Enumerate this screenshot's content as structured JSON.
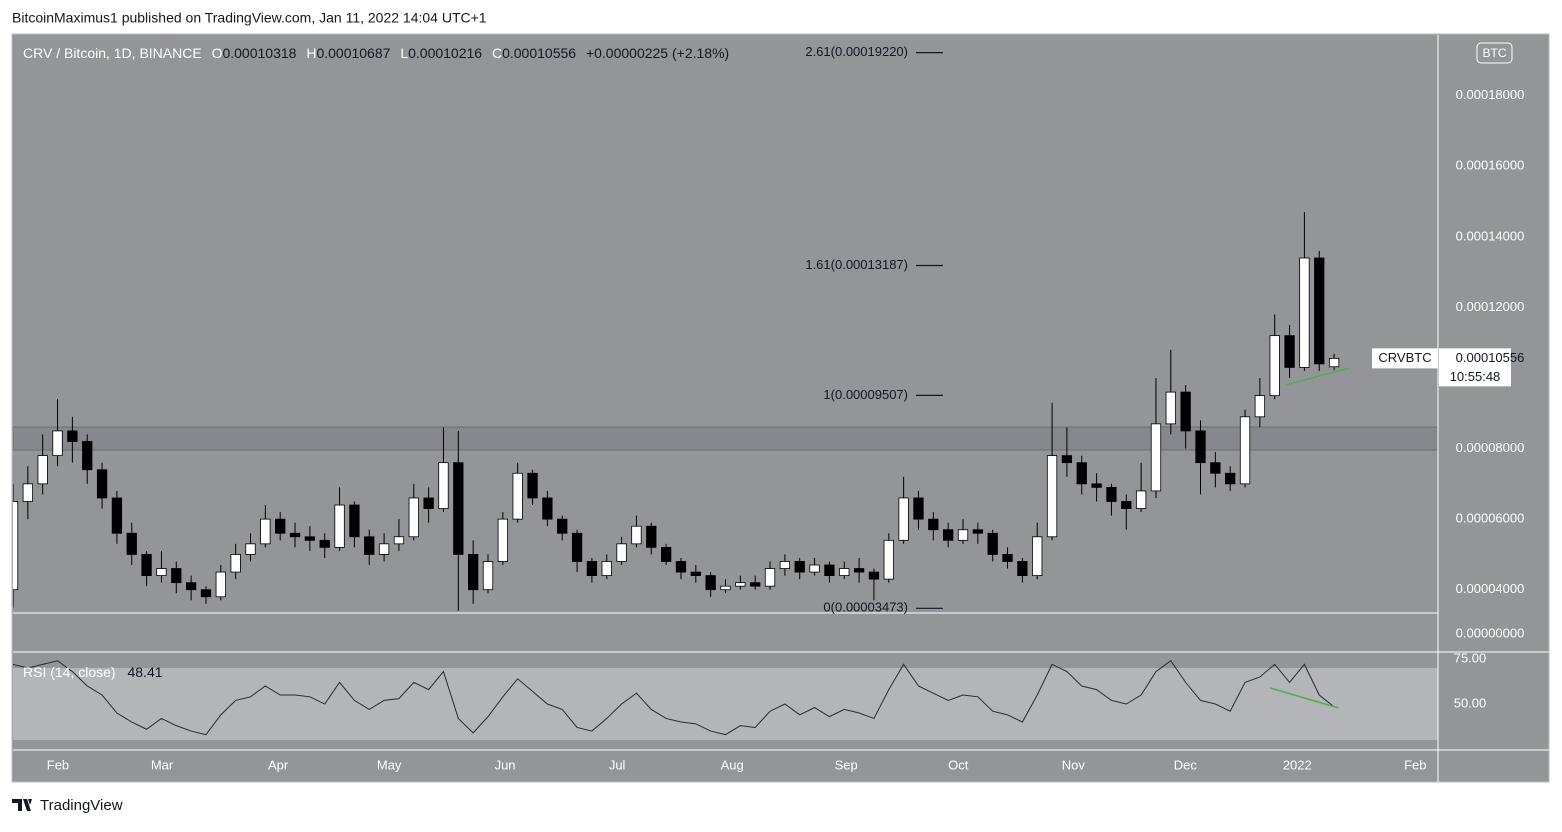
{
  "header": {
    "published": "BitcoinMaximus1 published on TradingView.com, Jan 11, 2022 14:04 UTC+1"
  },
  "footer": {
    "brand": "TradingView"
  },
  "chart_data": {
    "type": "candlestick",
    "symbol": "CRV / Bitcoin, 1D, BINANCE",
    "ohlc_legend": [
      {
        "key": "O",
        "text": "0.00010318"
      },
      {
        "key": "H",
        "text": "0.00010687"
      },
      {
        "key": "L",
        "text": "0.00010216"
      },
      {
        "key": "C",
        "text": "0.00010556"
      }
    ],
    "change": "+0.00000225 (+2.18%)",
    "currency": "BTC",
    "up_color": "#ffffff",
    "down_color": "#000000",
    "open": [
      4e-05,
      6.5e-05,
      7e-05,
      7.8e-05,
      8.5e-05,
      8.2e-05,
      7.4e-05,
      6.6e-05,
      5.6e-05,
      5e-05,
      4.4e-05,
      4.6e-05,
      4.2e-05,
      4e-05,
      3.8e-05,
      4.5e-05,
      5e-05,
      5.3e-05,
      6e-05,
      5.6e-05,
      5.5e-05,
      5.4e-05,
      5.2e-05,
      6.4e-05,
      5.5e-05,
      5e-05,
      5.3e-05,
      5.5e-05,
      6.6e-05,
      6.3e-05,
      7.6e-05,
      5e-05,
      4e-05,
      4.8e-05,
      6e-05,
      7.3e-05,
      6.6e-05,
      6e-05,
      5.6e-05,
      4.8e-05,
      4.4e-05,
      4.8e-05,
      5.3e-05,
      5.8e-05,
      5.2e-05,
      4.8e-05,
      4.5e-05,
      4.4e-05,
      4e-05,
      4.1e-05,
      4.2e-05,
      4.1e-05,
      4.6e-05,
      4.8e-05,
      4.5e-05,
      4.7e-05,
      4.4e-05,
      4.6e-05,
      4.5e-05,
      4.3e-05,
      5.4e-05,
      6.6e-05,
      6e-05,
      5.7e-05,
      5.4e-05,
      5.7e-05,
      5.6e-05,
      5e-05,
      4.8e-05,
      4.4e-05,
      5.5e-05,
      7.8e-05,
      7.6e-05,
      7e-05,
      6.9e-05,
      6.5e-05,
      6.3e-05,
      6.8e-05,
      8.7e-05,
      9.6e-05,
      8.5e-05,
      7.6e-05,
      7.3e-05,
      7e-05,
      8.9e-05,
      9.5e-05,
      0.000112,
      0.000103,
      0.000134,
      0.00010318
    ],
    "high": [
      7e-05,
      7.5e-05,
      8.4e-05,
      9.4e-05,
      8.9e-05,
      8.4e-05,
      7.6e-05,
      6.8e-05,
      5.9e-05,
      5.1e-05,
      5.1e-05,
      4.8e-05,
      4.4e-05,
      4.1e-05,
      4.7e-05,
      5.3e-05,
      5.6e-05,
      6.4e-05,
      6.2e-05,
      5.9e-05,
      5.8e-05,
      5.6e-05,
      6.9e-05,
      6.5e-05,
      5.7e-05,
      5.6e-05,
      6e-05,
      7e-05,
      6.9e-05,
      8.6e-05,
      8.5e-05,
      5.4e-05,
      5e-05,
      6.2e-05,
      7.6e-05,
      7.4e-05,
      6.8e-05,
      6.1e-05,
      5.7e-05,
      4.9e-05,
      5e-05,
      5.5e-05,
      6.1e-05,
      5.9e-05,
      5.3e-05,
      4.9e-05,
      4.7e-05,
      4.5e-05,
      4.3e-05,
      4.4e-05,
      4.4e-05,
      4.8e-05,
      5e-05,
      4.9e-05,
      4.9e-05,
      4.8e-05,
      4.8e-05,
      4.9e-05,
      4.6e-05,
      5.6e-05,
      7.2e-05,
      6.8e-05,
      6.2e-05,
      5.9e-05,
      6e-05,
      5.9e-05,
      5.7e-05,
      5.2e-05,
      4.9e-05,
      5.9e-05,
      9.3e-05,
      8.6e-05,
      7.8e-05,
      7.3e-05,
      7e-05,
      6.7e-05,
      7.6e-05,
      0.0001,
      0.000108,
      9.8e-05,
      8.8e-05,
      7.9e-05,
      7.5e-05,
      9.1e-05,
      0.0001,
      0.000118,
      0.000115,
      0.000147,
      0.000136,
      0.00010687
    ],
    "low": [
      3.5e-05,
      6e-05,
      6.7e-05,
      7.5e-05,
      7.6e-05,
      7e-05,
      6.3e-05,
      5.3e-05,
      4.7e-05,
      4.1e-05,
      4.2e-05,
      3.9e-05,
      3.7e-05,
      3.6e-05,
      3.7e-05,
      4.3e-05,
      4.8e-05,
      5.2e-05,
      5.4e-05,
      5.2e-05,
      5.1e-05,
      4.9e-05,
      5.1e-05,
      5.2e-05,
      4.7e-05,
      4.8e-05,
      5.1e-05,
      5.4e-05,
      5.9e-05,
      6.2e-05,
      3.4e-05,
      3.6e-05,
      3.9e-05,
      4.7e-05,
      5.9e-05,
      6.4e-05,
      5.8e-05,
      5.4e-05,
      4.5e-05,
      4.2e-05,
      4.3e-05,
      4.7e-05,
      5.2e-05,
      5e-05,
      4.7e-05,
      4.3e-05,
      4.2e-05,
      3.8e-05,
      3.9e-05,
      4e-05,
      4e-05,
      4e-05,
      4.4e-05,
      4.3e-05,
      4.4e-05,
      4.2e-05,
      4.3e-05,
      4.2e-05,
      3.7e-05,
      4.2e-05,
      5.3e-05,
      5.7e-05,
      5.4e-05,
      5.2e-05,
      5.3e-05,
      5.3e-05,
      4.8e-05,
      4.6e-05,
      4.2e-05,
      4.3e-05,
      5.4e-05,
      7.2e-05,
      6.7e-05,
      6.5e-05,
      6.1e-05,
      5.7e-05,
      6.2e-05,
      6.6e-05,
      8.4e-05,
      8e-05,
      6.7e-05,
      6.9e-05,
      6.8e-05,
      6.9e-05,
      8.6e-05,
      9.4e-05,
      0.0001,
      0.000102,
      0.000102,
      0.00010216
    ],
    "close": [
      6.5e-05,
      7e-05,
      7.8e-05,
      8.5e-05,
      8.2e-05,
      7.4e-05,
      6.6e-05,
      5.6e-05,
      5e-05,
      4.4e-05,
      4.6e-05,
      4.2e-05,
      4e-05,
      3.8e-05,
      4.5e-05,
      5e-05,
      5.3e-05,
      6e-05,
      5.6e-05,
      5.5e-05,
      5.4e-05,
      5.2e-05,
      6.4e-05,
      5.5e-05,
      5e-05,
      5.3e-05,
      5.5e-05,
      6.6e-05,
      6.3e-05,
      7.6e-05,
      5e-05,
      4e-05,
      4.8e-05,
      6e-05,
      7.3e-05,
      6.6e-05,
      6e-05,
      5.6e-05,
      4.8e-05,
      4.4e-05,
      4.8e-05,
      5.3e-05,
      5.8e-05,
      5.2e-05,
      4.8e-05,
      4.5e-05,
      4.4e-05,
      4e-05,
      4.1e-05,
      4.2e-05,
      4.1e-05,
      4.6e-05,
      4.8e-05,
      4.5e-05,
      4.7e-05,
      4.4e-05,
      4.6e-05,
      4.5e-05,
      4.3e-05,
      5.4e-05,
      6.6e-05,
      6e-05,
      5.7e-05,
      5.4e-05,
      5.7e-05,
      5.6e-05,
      5e-05,
      4.8e-05,
      4.4e-05,
      5.5e-05,
      7.8e-05,
      7.6e-05,
      7e-05,
      6.9e-05,
      6.5e-05,
      6.3e-05,
      6.8e-05,
      8.7e-05,
      9.6e-05,
      8.5e-05,
      7.6e-05,
      7.3e-05,
      7e-05,
      8.9e-05,
      9.5e-05,
      0.000112,
      0.000103,
      0.000134,
      0.000104,
      0.00010556
    ],
    "xlim": [
      0,
      96
    ],
    "xticks": [
      {
        "value": 3.03,
        "label": "Feb"
      },
      {
        "value": 10.04,
        "label": "Mar"
      },
      {
        "value": 17.86,
        "label": "Apr"
      },
      {
        "value": 25.34,
        "label": "May"
      },
      {
        "value": 33.15,
        "label": "Jun"
      },
      {
        "value": 40.7,
        "label": "Jul"
      },
      {
        "value": 48.45,
        "label": "Aug"
      },
      {
        "value": 56.13,
        "label": "Sep"
      },
      {
        "value": 63.68,
        "label": "Oct"
      },
      {
        "value": 71.43,
        "label": "Nov"
      },
      {
        "value": 78.98,
        "label": "Dec"
      },
      {
        "value": 86.52,
        "label": "2022"
      },
      {
        "value": 94.47,
        "label": "Feb"
      }
    ],
    "ylim": [
      3.34e-05,
      0.0001972
    ],
    "yticks": [
      {
        "value": 4e-05,
        "label": "0.00004000"
      },
      {
        "value": 6e-05,
        "label": "0.00006000"
      },
      {
        "value": 8e-05,
        "label": "0.00008000"
      },
      {
        "value": 0.00012,
        "label": "0.00012000"
      },
      {
        "value": 0.00014,
        "label": "0.00014000"
      },
      {
        "value": 0.00016,
        "label": "0.00016000"
      },
      {
        "value": 0.00018,
        "label": "0.00018000"
      }
    ],
    "scale_floor_label": "0.00000000",
    "zone": [
      7.96e-05,
      8.61e-05
    ],
    "fib_levels": [
      {
        "value": 0.0001922,
        "label": "2.61(0.00019220)"
      },
      {
        "value": 0.00013187,
        "label": "1.61(0.00013187)"
      },
      {
        "value": 9.507e-05,
        "label": "1(0.00009507)"
      },
      {
        "value": 3.473e-05,
        "label": "0(0.00003473)"
      }
    ],
    "trendline": {
      "x": [
        85.7,
        90.0
      ],
      "y": [
        9.8e-05,
        0.0001028
      ],
      "color": "#4caf50"
    },
    "price_tag": {
      "symbol": "CRVBTC",
      "value": 0.00010556,
      "label": "0.00010556",
      "countdown": "10:55:48"
    },
    "rsi": {
      "label": "RSI (14, close)",
      "value_label": "48.41",
      "values": [
        72,
        70,
        72,
        74,
        68,
        60,
        55,
        45,
        40,
        36,
        42,
        38,
        35,
        33,
        44,
        52,
        54,
        60,
        55,
        55,
        54,
        50,
        62,
        52,
        47,
        52,
        53,
        62,
        58,
        68,
        42,
        34,
        43,
        54,
        64,
        57,
        50,
        47,
        37,
        35,
        42,
        50,
        56,
        47,
        42,
        40,
        39,
        35,
        33,
        38,
        37,
        46,
        50,
        44,
        48,
        43,
        47,
        45,
        42,
        58,
        72,
        60,
        56,
        52,
        55,
        54,
        46,
        44,
        40,
        55,
        72,
        68,
        60,
        58,
        52,
        50,
        55,
        68,
        74,
        62,
        52,
        50,
        46,
        62,
        65,
        72,
        62,
        72,
        55,
        48.41
      ],
      "ylim": [
        25.6,
        78.3
      ],
      "yticks": [
        {
          "value": 75,
          "label": "75.00"
        },
        {
          "value": 50,
          "label": "50.00"
        }
      ],
      "band": [
        30,
        70
      ],
      "trendline": {
        "x": [
          84.7,
          89.3
        ],
        "y": [
          58.9,
          47.8
        ],
        "color": "#4caf50"
      }
    }
  }
}
